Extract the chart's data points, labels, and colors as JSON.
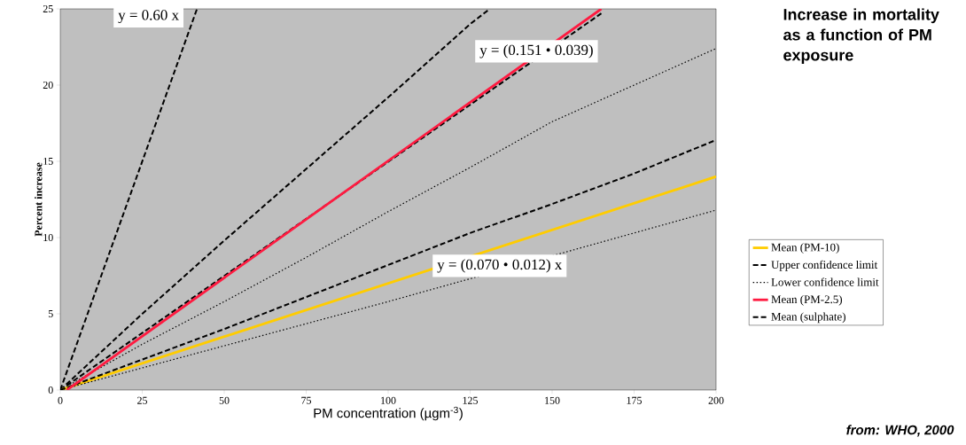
{
  "chart_data": {
    "type": "line",
    "title": "Increase in mortality as a function of PM exposure",
    "xlabel": "PM concentration (µgm$^{-3}$)",
    "ylabel": "Percent increase",
    "xlim": [
      0,
      200
    ],
    "ylim": [
      0,
      25
    ],
    "xticks": [
      0,
      25,
      50,
      75,
      100,
      125,
      150,
      175,
      200
    ],
    "yticks": [
      0,
      5,
      10,
      15,
      20,
      25
    ],
    "legend": "right",
    "series": [
      {
        "color": "#000000",
        "line_style": "dashed",
        "x": [
          0,
          25,
          50,
          75,
          100,
          125,
          131
        ],
        "values": [
          0,
          5,
          9.8,
          14.5,
          19.2,
          24,
          25
        ]
      },
      {
        "color": "#000000",
        "line_style": "dotted",
        "x": [
          0,
          25,
          50,
          75,
          100,
          125,
          150,
          175,
          200
        ],
        "values": [
          0,
          3,
          5.8,
          8.7,
          11.7,
          14.6,
          17.6,
          20,
          22.4
        ]
      },
      {
        "color": "#000000",
        "line_style": "dashed",
        "x": [
          0,
          165
        ],
        "values": [
          0,
          24.7
        ]
      },
      {
        "name": "Mean (PM-10)",
        "color": "#ffcc00",
        "line_style": "solid",
        "x": [
          0,
          200
        ],
        "values": [
          0,
          14
        ]
      },
      {
        "name": "Upper confidence limit",
        "color": "#000000",
        "line_style": "dashed",
        "x": [
          0,
          50,
          100,
          125,
          150,
          175,
          200
        ],
        "values": [
          0,
          4,
          8.2,
          10.3,
          12.2,
          14.2,
          16.4
        ]
      },
      {
        "name": "Lower confidence limit",
        "color": "#000000",
        "line_style": "dotted",
        "x": [
          0,
          50,
          100,
          150,
          200
        ],
        "values": [
          0,
          2.9,
          5.8,
          null,
          11.8
        ]
      },
      {
        "name": "Mean (PM-2.5)",
        "color": "#ff1a40",
        "line_style": "solid",
        "x": [
          2,
          165
        ],
        "values": [
          0,
          25
        ]
      },
      {
        "name": "Mean (sulphate)",
        "color": "#000000",
        "line_style": "dashed",
        "x": [
          0,
          20,
          41.7
        ],
        "values": [
          0,
          12,
          25
        ]
      }
    ],
    "annotations": [
      "y = 0.60 x",
      "y = (0.151 • 0.039)",
      "y = (0.070 • 0.012) x",
      "from: WHO, 2000"
    ]
  }
}
